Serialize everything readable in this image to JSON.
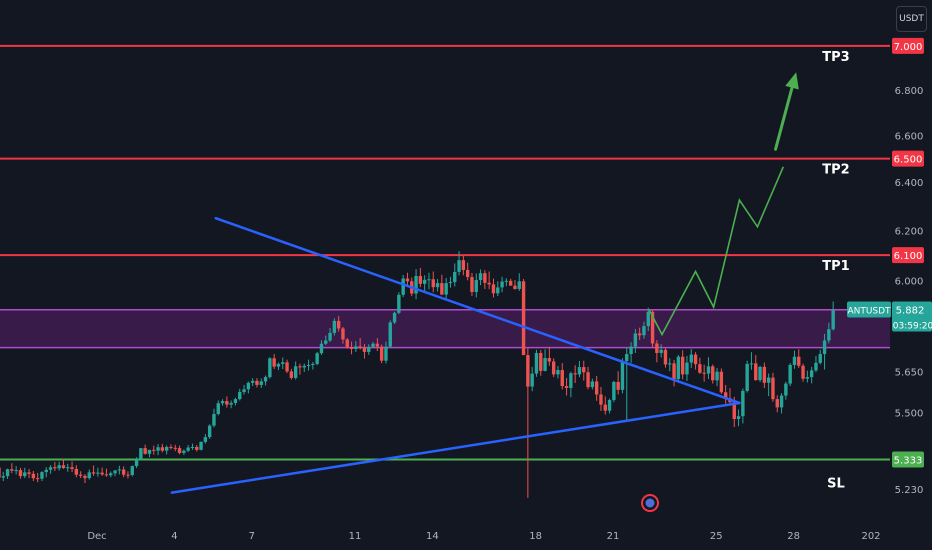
{
  "currency_button": "USDT",
  "colors": {
    "background": "#131722",
    "up": "#26a69a",
    "down": "#ef5350",
    "target_line": "#f23645",
    "stop_line": "#4caf50",
    "zone": "#9c27b0",
    "trendline": "#2962ff",
    "projection": "#4caf50",
    "axis_text": "#b2b5be"
  },
  "chart_data": {
    "type": "candlestick",
    "symbol": "ANTUSDT",
    "y_scale": "log",
    "ylim": [
      5.18,
      7.05
    ],
    "y_ticks": [
      "5.230",
      "5.500",
      "5.650",
      "6.000",
      "6.200",
      "6.400",
      "6.600",
      "6.800"
    ],
    "x_ticks": [
      "Dec",
      "4",
      "7",
      "11",
      "14",
      "18",
      "21",
      "25",
      "28",
      "202"
    ],
    "x_tick_days": [
      1,
      4,
      7,
      11,
      14,
      18,
      21,
      25,
      28,
      31
    ],
    "bars_per_day": 6,
    "first_bar_day": -2.8,
    "candles": [
      [
        5.305,
        5.318,
        5.27,
        5.27
      ],
      [
        5.27,
        5.29,
        5.258,
        5.275
      ],
      [
        5.275,
        5.301,
        5.265,
        5.299
      ],
      [
        5.299,
        5.32,
        5.285,
        5.294
      ],
      [
        5.294,
        5.31,
        5.281,
        5.296
      ],
      [
        5.296,
        5.304,
        5.266,
        5.275
      ],
      [
        5.275,
        5.304,
        5.268,
        5.288
      ],
      [
        5.288,
        5.3,
        5.268,
        5.283
      ],
      [
        5.283,
        5.293,
        5.258,
        5.268
      ],
      [
        5.268,
        5.286,
        5.254,
        5.266
      ],
      [
        5.266,
        5.292,
        5.258,
        5.289
      ],
      [
        5.289,
        5.306,
        5.271,
        5.297
      ],
      [
        5.297,
        5.313,
        5.283,
        5.306
      ],
      [
        5.306,
        5.324,
        5.293,
        5.302
      ],
      [
        5.302,
        5.325,
        5.294,
        5.313
      ],
      [
        5.313,
        5.336,
        5.3,
        5.303
      ],
      [
        5.303,
        5.318,
        5.29,
        5.306
      ],
      [
        5.306,
        5.326,
        5.289,
        5.3
      ],
      [
        5.3,
        5.313,
        5.271,
        5.28
      ],
      [
        5.28,
        5.292,
        5.268,
        5.276
      ],
      [
        5.276,
        5.282,
        5.251,
        5.268
      ],
      [
        5.268,
        5.298,
        5.263,
        5.288
      ],
      [
        5.288,
        5.312,
        5.276,
        5.284
      ],
      [
        5.284,
        5.304,
        5.273,
        5.287
      ],
      [
        5.287,
        5.305,
        5.276,
        5.281
      ],
      [
        5.281,
        5.301,
        5.273,
        5.278
      ],
      [
        5.278,
        5.291,
        5.271,
        5.285
      ],
      [
        5.285,
        5.295,
        5.275,
        5.295
      ],
      [
        5.295,
        5.311,
        5.281,
        5.298
      ],
      [
        5.298,
        5.309,
        5.271,
        5.28
      ],
      [
        5.28,
        5.292,
        5.267,
        5.279
      ],
      [
        5.279,
        5.312,
        5.274,
        5.31
      ],
      [
        5.31,
        5.341,
        5.303,
        5.335
      ],
      [
        5.335,
        5.373,
        5.33,
        5.373
      ],
      [
        5.373,
        5.385,
        5.35,
        5.353
      ],
      [
        5.353,
        5.367,
        5.341,
        5.367
      ],
      [
        5.367,
        5.382,
        5.35,
        5.364
      ],
      [
        5.364,
        5.387,
        5.348,
        5.376
      ],
      [
        5.376,
        5.388,
        5.358,
        5.364
      ],
      [
        5.364,
        5.383,
        5.351,
        5.377
      ],
      [
        5.377,
        5.386,
        5.368,
        5.374
      ],
      [
        5.374,
        5.385,
        5.362,
        5.373
      ],
      [
        5.373,
        5.382,
        5.351,
        5.356
      ],
      [
        5.356,
        5.368,
        5.349,
        5.364
      ],
      [
        5.364,
        5.384,
        5.359,
        5.375
      ],
      [
        5.375,
        5.389,
        5.367,
        5.377
      ],
      [
        5.377,
        5.384,
        5.361,
        5.367
      ],
      [
        5.367,
        5.397,
        5.365,
        5.395
      ],
      [
        5.395,
        5.423,
        5.389,
        5.412
      ],
      [
        5.412,
        5.458,
        5.406,
        5.453
      ],
      [
        5.453,
        5.514,
        5.447,
        5.495
      ],
      [
        5.495,
        5.544,
        5.49,
        5.534
      ],
      [
        5.534,
        5.549,
        5.525,
        5.542
      ],
      [
        5.542,
        5.559,
        5.518,
        5.529
      ],
      [
        5.529,
        5.544,
        5.516,
        5.535
      ],
      [
        5.535,
        5.554,
        5.526,
        5.549
      ],
      [
        5.549,
        5.587,
        5.544,
        5.575
      ],
      [
        5.575,
        5.601,
        5.566,
        5.585
      ],
      [
        5.585,
        5.613,
        5.57,
        5.609
      ],
      [
        5.609,
        5.626,
        5.597,
        5.616
      ],
      [
        5.616,
        5.626,
        5.592,
        5.601
      ],
      [
        5.601,
        5.625,
        5.59,
        5.614
      ],
      [
        5.614,
        5.636,
        5.599,
        5.63
      ],
      [
        5.63,
        5.704,
        5.624,
        5.7
      ],
      [
        5.7,
        5.716,
        5.66,
        5.669
      ],
      [
        5.669,
        5.684,
        5.656,
        5.679
      ],
      [
        5.679,
        5.703,
        5.66,
        5.685
      ],
      [
        5.685,
        5.695,
        5.645,
        5.651
      ],
      [
        5.651,
        5.661,
        5.621,
        5.627
      ],
      [
        5.627,
        5.688,
        5.621,
        5.67
      ],
      [
        5.67,
        5.68,
        5.639,
        5.666
      ],
      [
        5.666,
        5.68,
        5.649,
        5.672
      ],
      [
        5.672,
        5.695,
        5.654,
        5.675
      ],
      [
        5.675,
        5.686,
        5.658,
        5.679
      ],
      [
        5.679,
        5.724,
        5.674,
        5.719
      ],
      [
        5.719,
        5.768,
        5.713,
        5.755
      ],
      [
        5.755,
        5.786,
        5.75,
        5.767
      ],
      [
        5.767,
        5.815,
        5.761,
        5.796
      ],
      [
        5.796,
        5.852,
        5.786,
        5.842
      ],
      [
        5.842,
        5.861,
        5.801,
        5.813
      ],
      [
        5.813,
        5.819,
        5.755,
        5.771
      ],
      [
        5.771,
        5.777,
        5.736,
        5.742
      ],
      [
        5.742,
        5.763,
        5.715,
        5.735
      ],
      [
        5.735,
        5.765,
        5.724,
        5.745
      ],
      [
        5.745,
        5.777,
        5.733,
        5.74
      ],
      [
        5.74,
        5.754,
        5.699,
        5.724
      ],
      [
        5.724,
        5.753,
        5.713,
        5.743
      ],
      [
        5.743,
        5.762,
        5.737,
        5.755
      ],
      [
        5.755,
        5.776,
        5.727,
        5.744
      ],
      [
        5.744,
        5.752,
        5.682,
        5.691
      ],
      [
        5.691,
        5.763,
        5.681,
        5.744
      ],
      [
        5.744,
        5.844,
        5.74,
        5.836
      ],
      [
        5.836,
        5.877,
        5.83,
        5.873
      ],
      [
        5.873,
        5.953,
        5.868,
        5.943
      ],
      [
        5.943,
        6.021,
        5.934,
        6.007
      ],
      [
        6.007,
        6.03,
        5.977,
        5.996
      ],
      [
        5.996,
        6.011,
        5.938,
        5.948
      ],
      [
        5.948,
        6.044,
        5.926,
        6.017
      ],
      [
        6.017,
        6.049,
        5.973,
        5.986
      ],
      [
        5.986,
        6.02,
        5.952,
        6.002
      ],
      [
        6.002,
        6.03,
        5.965,
        6.004
      ],
      [
        6.004,
        6.035,
        5.953,
        5.973
      ],
      [
        5.973,
        6.005,
        5.956,
        5.989
      ],
      [
        5.989,
        6.022,
        5.942,
        5.944
      ],
      [
        5.944,
        6.009,
        5.929,
        5.989
      ],
      [
        5.989,
        6.014,
        5.971,
        5.993
      ],
      [
        5.993,
        6.067,
        5.976,
        6.033
      ],
      [
        6.033,
        6.116,
        6.019,
        6.08
      ],
      [
        6.08,
        6.097,
        6.02,
        6.041
      ],
      [
        6.041,
        6.07,
        6.0,
        6.013
      ],
      [
        6.013,
        6.029,
        5.938,
        5.954
      ],
      [
        5.954,
        6.027,
        5.933,
        6.001
      ],
      [
        6.001,
        6.043,
        5.981,
        6.028
      ],
      [
        6.028,
        6.04,
        5.966,
        5.99
      ],
      [
        5.99,
        6.035,
        5.965,
        5.984
      ],
      [
        5.984,
        6.007,
        5.933,
        5.949
      ],
      [
        5.949,
        5.996,
        5.938,
        5.972
      ],
      [
        5.972,
        6.014,
        5.953,
        5.995
      ],
      [
        5.995,
        6.008,
        5.977,
        5.998
      ],
      [
        5.998,
        6.006,
        5.978,
        5.979
      ],
      [
        5.979,
        6.001,
        5.963,
        5.966
      ],
      [
        5.966,
        6.028,
        5.958,
        5.996
      ],
      [
        5.996,
        6.005,
        5.713,
        5.712
      ],
      [
        5.712,
        5.74,
        5.2,
        5.595
      ],
      [
        5.595,
        5.668,
        5.578,
        5.643
      ],
      [
        5.643,
        5.732,
        5.631,
        5.72
      ],
      [
        5.72,
        5.731,
        5.635,
        5.653
      ],
      [
        5.653,
        5.734,
        5.651,
        5.701
      ],
      [
        5.701,
        5.743,
        5.672,
        5.688
      ],
      [
        5.688,
        5.7,
        5.63,
        5.64
      ],
      [
        5.64,
        5.671,
        5.625,
        5.656
      ],
      [
        5.656,
        5.682,
        5.585,
        5.597
      ],
      [
        5.597,
        5.627,
        5.562,
        5.59
      ],
      [
        5.59,
        5.65,
        5.556,
        5.644
      ],
      [
        5.644,
        5.674,
        5.608,
        5.64
      ],
      [
        5.64,
        5.69,
        5.63,
        5.667
      ],
      [
        5.667,
        5.691,
        5.617,
        5.648
      ],
      [
        5.648,
        5.668,
        5.585,
        5.593
      ],
      [
        5.593,
        5.624,
        5.584,
        5.614
      ],
      [
        5.614,
        5.634,
        5.543,
        5.566
      ],
      [
        5.566,
        5.594,
        5.506,
        5.529
      ],
      [
        5.529,
        5.559,
        5.493,
        5.507
      ],
      [
        5.507,
        5.551,
        5.497,
        5.546
      ],
      [
        5.546,
        5.616,
        5.538,
        5.612
      ],
      [
        5.612,
        5.652,
        5.566,
        5.583
      ],
      [
        5.583,
        5.7,
        5.57,
        5.69
      ],
      [
        5.69,
        5.74,
        5.47,
        5.716
      ],
      [
        5.716,
        5.761,
        5.683,
        5.744
      ],
      [
        5.744,
        5.811,
        5.72,
        5.794
      ],
      [
        5.794,
        5.816,
        5.769,
        5.787
      ],
      [
        5.787,
        5.839,
        5.774,
        5.822
      ],
      [
        5.822,
        5.893,
        5.803,
        5.877
      ],
      [
        5.877,
        5.884,
        5.741,
        5.756
      ],
      [
        5.756,
        5.769,
        5.685,
        5.72
      ],
      [
        5.72,
        5.753,
        5.703,
        5.732
      ],
      [
        5.732,
        5.739,
        5.665,
        5.677
      ],
      [
        5.677,
        5.7,
        5.652,
        5.681
      ],
      [
        5.681,
        5.694,
        5.596,
        5.623
      ],
      [
        5.623,
        5.713,
        5.609,
        5.706
      ],
      [
        5.706,
        5.73,
        5.622,
        5.64
      ],
      [
        5.64,
        5.709,
        5.616,
        5.684
      ],
      [
        5.684,
        5.735,
        5.664,
        5.714
      ],
      [
        5.714,
        5.723,
        5.658,
        5.678
      ],
      [
        5.678,
        5.702,
        5.642,
        5.646
      ],
      [
        5.646,
        5.676,
        5.613,
        5.643
      ],
      [
        5.643,
        5.704,
        5.623,
        5.67
      ],
      [
        5.67,
        5.677,
        5.606,
        5.618
      ],
      [
        5.618,
        5.664,
        5.596,
        5.65
      ],
      [
        5.65,
        5.662,
        5.568,
        5.574
      ],
      [
        5.574,
        5.601,
        5.532,
        5.552
      ],
      [
        5.552,
        5.589,
        5.53,
        5.538
      ],
      [
        5.538,
        5.557,
        5.448,
        5.477
      ],
      [
        5.477,
        5.511,
        5.451,
        5.487
      ],
      [
        5.487,
        5.588,
        5.461,
        5.579
      ],
      [
        5.579,
        5.691,
        5.573,
        5.679
      ],
      [
        5.679,
        5.723,
        5.657,
        5.681
      ],
      [
        5.681,
        5.712,
        5.616,
        5.619
      ],
      [
        5.619,
        5.672,
        5.612,
        5.668
      ],
      [
        5.668,
        5.684,
        5.59,
        5.609
      ],
      [
        5.609,
        5.643,
        5.56,
        5.628
      ],
      [
        5.628,
        5.646,
        5.539,
        5.549
      ],
      [
        5.549,
        5.563,
        5.501,
        5.519
      ],
      [
        5.519,
        5.571,
        5.497,
        5.562
      ],
      [
        5.562,
        5.613,
        5.547,
        5.606
      ],
      [
        5.606,
        5.682,
        5.597,
        5.675
      ],
      [
        5.675,
        5.729,
        5.661,
        5.706
      ],
      [
        5.706,
        5.734,
        5.664,
        5.672
      ],
      [
        5.672,
        5.68,
        5.613,
        5.624
      ],
      [
        5.624,
        5.654,
        5.61,
        5.63
      ],
      [
        5.63,
        5.668,
        5.607,
        5.655
      ],
      [
        5.655,
        5.709,
        5.648,
        5.683
      ],
      [
        5.683,
        5.732,
        5.677,
        5.716
      ],
      [
        5.716,
        5.792,
        5.658,
        5.767
      ],
      [
        5.767,
        5.835,
        5.756,
        5.81
      ],
      [
        5.81,
        5.917,
        5.805,
        5.882
      ]
    ],
    "levels": [
      {
        "label": "TP3",
        "value": 7.0,
        "value_text": "7.000",
        "color": "#f23645"
      },
      {
        "label": "TP2",
        "value": 6.5,
        "value_text": "6.500",
        "color": "#f23645"
      },
      {
        "label": "TP1",
        "value": 6.1,
        "value_text": "6.100",
        "color": "#f23645"
      },
      {
        "label": "SL",
        "value": 5.333,
        "value_text": "5.333",
        "color": "#4caf50"
      }
    ],
    "zone": {
      "from": 5.74,
      "to": 5.885,
      "color": "#9c27b0"
    },
    "trendlines": [
      {
        "from": {
          "day": 5.6,
          "price": 6.25
        },
        "to": {
          "day": 25.9,
          "price": 5.535
        }
      },
      {
        "from": {
          "day": 3.9,
          "price": 5.218
        },
        "to": {
          "day": 25.9,
          "price": 5.535
        }
      }
    ],
    "projection_path": [
      {
        "day": 22.4,
        "price": 5.885
      },
      {
        "day": 22.9,
        "price": 5.79
      },
      {
        "day": 24.2,
        "price": 6.035
      },
      {
        "day": 24.9,
        "price": 5.895
      },
      {
        "day": 25.9,
        "price": 6.325
      },
      {
        "day": 26.6,
        "price": 6.215
      },
      {
        "day": 27.6,
        "price": 6.465
      }
    ],
    "projection_arrow": {
      "from": {
        "day": 27.3,
        "price": 6.54
      },
      "to": {
        "day": 28.1,
        "price": 6.88
      }
    },
    "last_price": {
      "symbol": "ANTUSDT",
      "value": "5.882",
      "countdown": "03:59:20"
    }
  }
}
